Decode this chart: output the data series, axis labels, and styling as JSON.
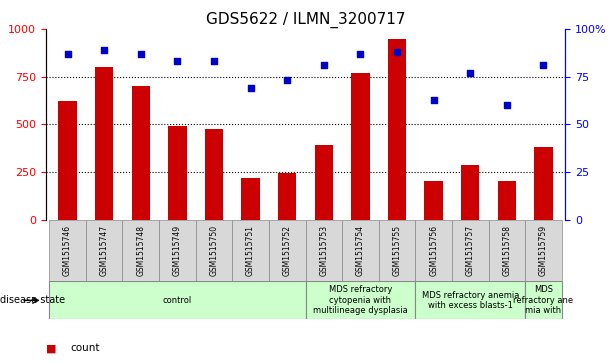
{
  "title": "GDS5622 / ILMN_3200717",
  "samples": [
    "GSM1515746",
    "GSM1515747",
    "GSM1515748",
    "GSM1515749",
    "GSM1515750",
    "GSM1515751",
    "GSM1515752",
    "GSM1515753",
    "GSM1515754",
    "GSM1515755",
    "GSM1515756",
    "GSM1515757",
    "GSM1515758",
    "GSM1515759"
  ],
  "counts": [
    620,
    800,
    700,
    490,
    475,
    220,
    245,
    390,
    770,
    950,
    200,
    285,
    200,
    380
  ],
  "percentile_ranks": [
    87,
    89,
    87,
    83,
    83,
    69,
    73,
    81,
    87,
    88,
    63,
    77,
    60,
    81
  ],
  "disease_states": [
    {
      "label": "control",
      "start": 0,
      "end": 7,
      "color": "#ccffcc"
    },
    {
      "label": "MDS refractory\ncytopenia with\nmultilineage dysplasia",
      "start": 7,
      "end": 10,
      "color": "#ccffcc"
    },
    {
      "label": "MDS refractory anemia\nwith excess blasts-1",
      "start": 10,
      "end": 13,
      "color": "#ccffcc"
    },
    {
      "label": "MDS\nrefractory ane\nmia with",
      "start": 13,
      "end": 14,
      "color": "#ccffcc"
    }
  ],
  "ylim_left": [
    0,
    1000
  ],
  "ylim_right": [
    0,
    100
  ],
  "yticks_left": [
    0,
    250,
    500,
    750,
    1000
  ],
  "yticks_right": [
    0,
    25,
    50,
    75,
    100
  ],
  "ytick_labels_right": [
    "0",
    "25",
    "50",
    "75",
    "100%"
  ],
  "bar_color": "#cc0000",
  "dot_color": "#0000cc",
  "bar_width": 0.5,
  "title_fontsize": 11,
  "tick_fontsize": 8,
  "sample_fontsize": 5.5,
  "disease_fontsize": 6,
  "legend_fontsize": 7.5
}
